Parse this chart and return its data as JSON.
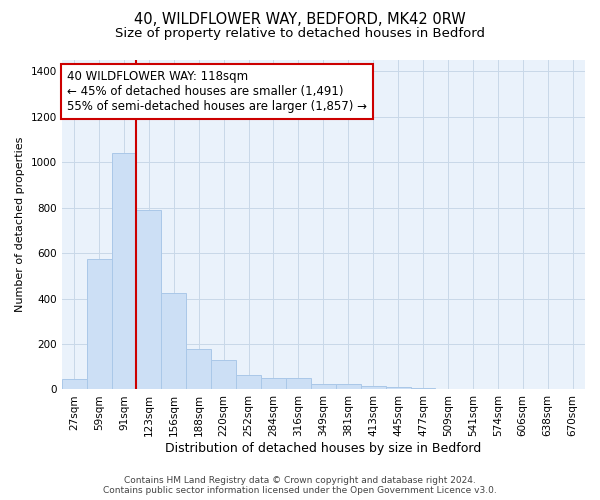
{
  "title_line1": "40, WILDFLOWER WAY, BEDFORD, MK42 0RW",
  "title_line2": "Size of property relative to detached houses in Bedford",
  "xlabel": "Distribution of detached houses by size in Bedford",
  "ylabel": "Number of detached properties",
  "bar_color": "#ccdff5",
  "bar_edge_color": "#aac8e8",
  "vline_color": "#cc0000",
  "annotation_line1": "40 WILDFLOWER WAY: 118sqm",
  "annotation_line2": "← 45% of detached houses are smaller (1,491)",
  "annotation_line3": "55% of semi-detached houses are larger (1,857) →",
  "annotation_box_color": "#cc0000",
  "categories": [
    "27sqm",
    "59sqm",
    "91sqm",
    "123sqm",
    "156sqm",
    "188sqm",
    "220sqm",
    "252sqm",
    "284sqm",
    "316sqm",
    "349sqm",
    "381sqm",
    "413sqm",
    "445sqm",
    "477sqm",
    "509sqm",
    "541sqm",
    "574sqm",
    "606sqm",
    "638sqm",
    "670sqm"
  ],
  "values": [
    47,
    573,
    1042,
    790,
    425,
    180,
    128,
    63,
    52,
    50,
    25,
    25,
    17,
    13,
    8,
    0,
    0,
    0,
    0,
    0,
    0
  ],
  "ylim": [
    0,
    1450
  ],
  "yticks": [
    0,
    200,
    400,
    600,
    800,
    1000,
    1200,
    1400
  ],
  "grid_color": "#c8d8e8",
  "bg_color": "#eaf2fb",
  "footer_line1": "Contains HM Land Registry data © Crown copyright and database right 2024.",
  "footer_line2": "Contains public sector information licensed under the Open Government Licence v3.0.",
  "title_fontsize": 10.5,
  "subtitle_fontsize": 9.5,
  "xlabel_fontsize": 9,
  "ylabel_fontsize": 8,
  "tick_fontsize": 7.5,
  "annotation_fontsize": 8.5,
  "footer_fontsize": 6.5
}
